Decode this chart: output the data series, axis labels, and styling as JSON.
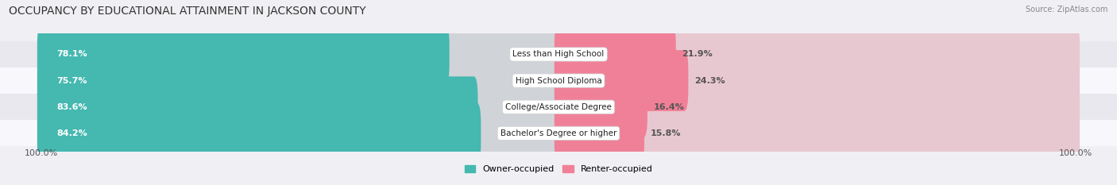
{
  "title": "OCCUPANCY BY EDUCATIONAL ATTAINMENT IN JACKSON COUNTY",
  "source": "Source: ZipAtlas.com",
  "categories": [
    "Less than High School",
    "High School Diploma",
    "College/Associate Degree",
    "Bachelor's Degree or higher"
  ],
  "owner_pct": [
    78.1,
    75.7,
    83.6,
    84.2
  ],
  "renter_pct": [
    21.9,
    24.3,
    16.4,
    15.8
  ],
  "owner_color": "#45b8b0",
  "renter_color": "#f08098",
  "renter_color_light": "#f5b8c8",
  "bg_color": "#f0f0f4",
  "row_bg_even": "#e8e8ee",
  "row_bg_odd": "#f8f8fc",
  "title_fontsize": 10,
  "label_fontsize": 8,
  "tick_fontsize": 8,
  "bar_height": 0.72,
  "x_left_label": "100.0%",
  "x_right_label": "100.0%",
  "legend_owner": "Owner-occupied",
  "legend_renter": "Renter-occupied"
}
